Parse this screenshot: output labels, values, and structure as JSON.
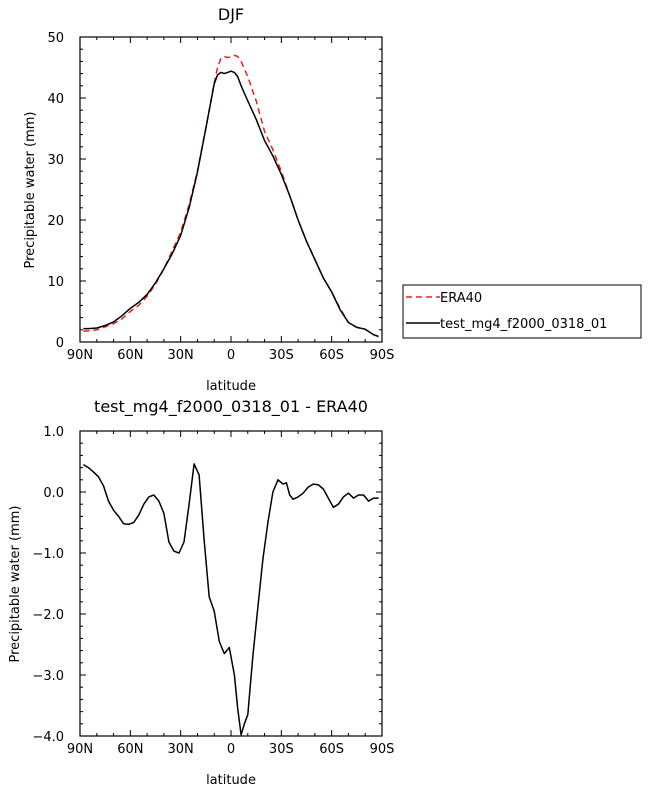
{
  "chart_data": [
    {
      "type": "line",
      "title": "DJF",
      "xlabel": "latitude",
      "ylabel": "Precipitable water (mm)",
      "xlim": [
        90,
        -90
      ],
      "ylim": [
        0,
        50
      ],
      "x_ticks": [
        90,
        60,
        30,
        0,
        -30,
        -60,
        -90
      ],
      "x_tick_labels": [
        "90N",
        "60N",
        "30N",
        "0",
        "30S",
        "60S",
        "90S"
      ],
      "y_ticks": [
        0,
        10,
        20,
        30,
        40,
        50
      ],
      "y_tick_labels": [
        "0",
        "10",
        "20",
        "30",
        "40",
        "50"
      ],
      "legend_position": "right",
      "series": [
        {
          "name": "ERA40",
          "color": "#e8201d",
          "dash": "dashed",
          "x": [
            88,
            85,
            80,
            75,
            70,
            65,
            60,
            55,
            50,
            45,
            40,
            35,
            30,
            25,
            20,
            15,
            10,
            8,
            6,
            4,
            2,
            0,
            -2,
            -4,
            -6,
            -10,
            -15,
            -20,
            -25,
            -30,
            -35,
            -40,
            -45,
            -50,
            -55,
            -60,
            -65,
            -70,
            -75,
            -80,
            -85,
            -88
          ],
          "y": [
            1.8,
            1.8,
            2.0,
            2.5,
            3.0,
            3.8,
            5.0,
            6.0,
            7.5,
            9.5,
            12.0,
            15.0,
            18.0,
            22.5,
            28.0,
            35.0,
            42.5,
            45.0,
            46.5,
            46.8,
            46.6,
            46.8,
            47.0,
            46.8,
            46.0,
            43.5,
            39.5,
            34.5,
            31.5,
            28.0,
            24.0,
            20.0,
            16.5,
            13.5,
            10.5,
            8.2,
            5.5,
            3.2,
            2.4,
            2.1,
            1.2,
            0.9
          ]
        },
        {
          "name": "test_mg4_f2000_0318_01",
          "color": "#000000",
          "dash": "solid",
          "x": [
            88,
            85,
            80,
            75,
            70,
            65,
            60,
            55,
            50,
            45,
            40,
            35,
            30,
            25,
            20,
            15,
            10,
            8,
            6,
            4,
            2,
            0,
            -2,
            -4,
            -6,
            -10,
            -15,
            -20,
            -25,
            -30,
            -35,
            -40,
            -45,
            -50,
            -55,
            -60,
            -65,
            -70,
            -75,
            -80,
            -85,
            -88
          ],
          "y": [
            2.2,
            2.2,
            2.3,
            2.7,
            3.3,
            4.3,
            5.5,
            6.5,
            7.8,
            9.7,
            12.0,
            14.5,
            17.5,
            22.0,
            27.8,
            35.0,
            42.3,
            43.8,
            44.2,
            44.0,
            44.2,
            44.4,
            44.2,
            43.5,
            42.0,
            39.5,
            36.5,
            33.0,
            30.5,
            27.5,
            24.0,
            20.0,
            16.5,
            13.5,
            10.5,
            8.2,
            5.3,
            3.2,
            2.4,
            2.1,
            1.2,
            0.9
          ]
        }
      ]
    },
    {
      "type": "line",
      "title": "test_mg4_f2000_0318_01 - ERA40",
      "xlabel": "latitude",
      "ylabel": "Precipitable water (mm)",
      "xlim": [
        90,
        -90
      ],
      "ylim": [
        -4.0,
        1.0
      ],
      "x_ticks": [
        90,
        60,
        30,
        0,
        -30,
        -60,
        -90
      ],
      "x_tick_labels": [
        "90N",
        "60N",
        "30N",
        "0",
        "30S",
        "60S",
        "90S"
      ],
      "y_ticks": [
        -4,
        -3,
        -2,
        -1,
        0,
        1
      ],
      "y_tick_labels": [
        "−4.0",
        "−3.0",
        "−2.0",
        "−1.0",
        "0.0",
        "1.0"
      ],
      "series": [
        {
          "color": "#000000",
          "dash": "solid",
          "x": [
            88,
            85,
            82,
            79,
            76,
            73,
            70,
            67,
            64,
            61,
            58,
            55,
            52,
            49,
            46,
            43,
            40,
            37,
            34,
            31,
            28,
            25,
            22,
            19,
            16,
            13,
            10,
            7,
            4,
            1,
            -2,
            -4,
            -6,
            -8,
            -10,
            -13,
            -16,
            -19,
            -22,
            -25,
            -28,
            -31,
            -33,
            -35,
            -37,
            -40,
            -43,
            -46,
            -49,
            -52,
            -55,
            -58,
            -61,
            -64,
            -67,
            -70,
            -73,
            -76,
            -79,
            -82,
            -85,
            -88
          ],
          "y": [
            0.45,
            0.4,
            0.33,
            0.25,
            0.1,
            -0.15,
            -0.3,
            -0.4,
            -0.52,
            -0.53,
            -0.5,
            -0.38,
            -0.2,
            -0.08,
            -0.05,
            -0.15,
            -0.35,
            -0.82,
            -0.97,
            -1.0,
            -0.82,
            -0.2,
            0.46,
            0.28,
            -0.8,
            -1.72,
            -1.95,
            -2.45,
            -2.65,
            -2.55,
            -3.0,
            -3.55,
            -3.98,
            -3.8,
            -3.65,
            -2.7,
            -1.9,
            -1.1,
            -0.5,
            0.0,
            0.2,
            0.13,
            0.15,
            -0.05,
            -0.12,
            -0.08,
            -0.02,
            0.08,
            0.13,
            0.12,
            0.05,
            -0.1,
            -0.25,
            -0.2,
            -0.08,
            -0.02,
            -0.1,
            -0.05,
            -0.05,
            -0.15,
            -0.1,
            -0.1
          ]
        }
      ]
    }
  ]
}
